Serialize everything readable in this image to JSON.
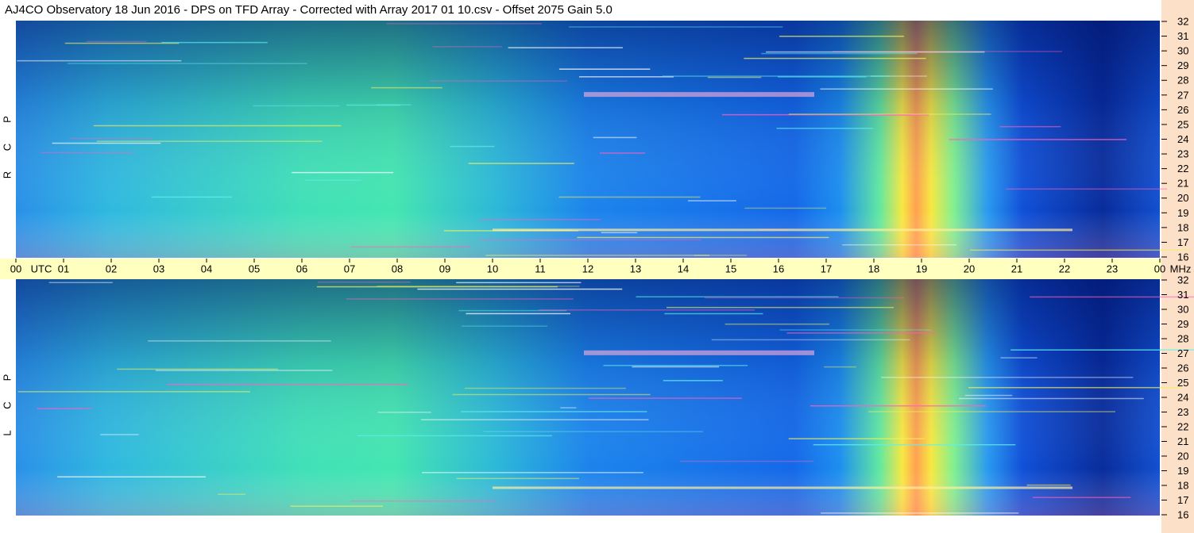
{
  "title": "AJ4CO Observatory  18 Jun 2016  -  DPS on TFD Array  -  Corrected with Array 2017 01 10.csv  -  Offset 2075  Gain 5.0",
  "time_axis": {
    "hours": [
      "00",
      "01",
      "02",
      "03",
      "04",
      "05",
      "06",
      "07",
      "08",
      "09",
      "10",
      "11",
      "12",
      "13",
      "14",
      "15",
      "16",
      "17",
      "18",
      "19",
      "20",
      "21",
      "22",
      "23",
      "00"
    ],
    "start_unit": "UTC",
    "end_unit": "MHz"
  },
  "panels": [
    {
      "letters": [
        "R",
        "C",
        "P"
      ],
      "freq_ticks": [
        "16",
        "17",
        "18",
        "19",
        "20",
        "21",
        "22",
        "23",
        "24",
        "25",
        "26",
        "27",
        "28",
        "29",
        "30",
        "31",
        "32"
      ]
    },
    {
      "letters": [
        "L",
        "C",
        "P"
      ],
      "freq_ticks": [
        "16",
        "17",
        "18",
        "19",
        "20",
        "21",
        "22",
        "23",
        "24",
        "25",
        "26",
        "27",
        "28",
        "29",
        "30",
        "31",
        "32"
      ]
    }
  ]
}
